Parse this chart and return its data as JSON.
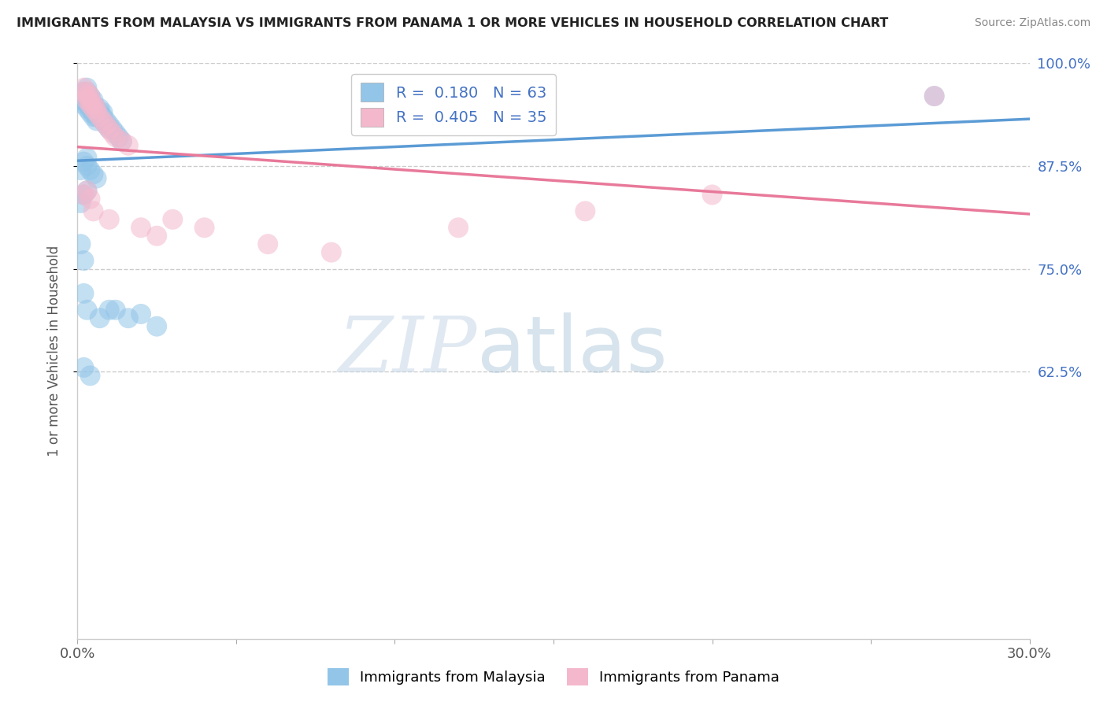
{
  "title": "IMMIGRANTS FROM MALAYSIA VS IMMIGRANTS FROM PANAMA 1 OR MORE VEHICLES IN HOUSEHOLD CORRELATION CHART",
  "source": "Source: ZipAtlas.com",
  "ylabel": "1 or more Vehicles in Household",
  "xlim": [
    0.0,
    0.3
  ],
  "ylim": [
    0.3,
    1.0
  ],
  "malaysia_R": 0.18,
  "malaysia_N": 63,
  "panama_R": 0.405,
  "panama_N": 35,
  "malaysia_color": "#92C5E8",
  "panama_color": "#F4B8CC",
  "malaysia_line_color": "#5B9BD5",
  "panama_line_color": "#E8799A",
  "legend_label_malaysia": "Immigrants from Malaysia",
  "legend_label_panama": "Immigrants from Panama",
  "background_color": "#ffffff",
  "grid_color": "#cccccc",
  "malaysia_x": [
    0.001,
    0.001,
    0.002,
    0.002,
    0.002,
    0.002,
    0.003,
    0.003,
    0.003,
    0.003,
    0.003,
    0.003,
    0.004,
    0.004,
    0.004,
    0.004,
    0.004,
    0.005,
    0.005,
    0.005,
    0.005,
    0.005,
    0.006,
    0.006,
    0.006,
    0.006,
    0.007,
    0.007,
    0.007,
    0.008,
    0.008,
    0.008,
    0.009,
    0.009,
    0.01,
    0.01,
    0.011,
    0.012,
    0.013,
    0.014,
    0.001,
    0.002,
    0.003,
    0.003,
    0.004,
    0.005,
    0.006,
    0.002,
    0.003,
    0.001,
    0.001,
    0.002,
    0.002,
    0.003,
    0.007,
    0.01,
    0.012,
    0.016,
    0.02,
    0.025,
    0.002,
    0.004,
    0.27
  ],
  "malaysia_y": [
    0.955,
    0.96,
    0.95,
    0.955,
    0.96,
    0.965,
    0.945,
    0.95,
    0.955,
    0.96,
    0.965,
    0.97,
    0.94,
    0.945,
    0.95,
    0.955,
    0.96,
    0.935,
    0.94,
    0.945,
    0.95,
    0.955,
    0.93,
    0.935,
    0.94,
    0.945,
    0.935,
    0.94,
    0.945,
    0.93,
    0.935,
    0.94,
    0.925,
    0.93,
    0.92,
    0.925,
    0.92,
    0.915,
    0.91,
    0.905,
    0.87,
    0.88,
    0.875,
    0.885,
    0.87,
    0.865,
    0.86,
    0.84,
    0.845,
    0.83,
    0.78,
    0.76,
    0.72,
    0.7,
    0.69,
    0.7,
    0.7,
    0.69,
    0.695,
    0.68,
    0.63,
    0.62,
    0.96
  ],
  "panama_x": [
    0.002,
    0.002,
    0.003,
    0.003,
    0.003,
    0.004,
    0.004,
    0.004,
    0.005,
    0.005,
    0.006,
    0.006,
    0.007,
    0.008,
    0.009,
    0.01,
    0.011,
    0.012,
    0.014,
    0.016,
    0.002,
    0.003,
    0.004,
    0.005,
    0.01,
    0.02,
    0.025,
    0.03,
    0.04,
    0.06,
    0.08,
    0.12,
    0.16,
    0.2,
    0.27
  ],
  "panama_y": [
    0.965,
    0.97,
    0.955,
    0.96,
    0.965,
    0.95,
    0.955,
    0.96,
    0.945,
    0.95,
    0.94,
    0.945,
    0.935,
    0.93,
    0.925,
    0.92,
    0.915,
    0.91,
    0.905,
    0.9,
    0.84,
    0.845,
    0.835,
    0.82,
    0.81,
    0.8,
    0.79,
    0.81,
    0.8,
    0.78,
    0.77,
    0.8,
    0.82,
    0.84,
    0.96
  ],
  "ytick_positions": [
    1.0,
    0.875,
    0.75,
    0.625
  ],
  "ytick_labels": [
    "100.0%",
    "87.5%",
    "75.0%",
    "62.5%"
  ]
}
